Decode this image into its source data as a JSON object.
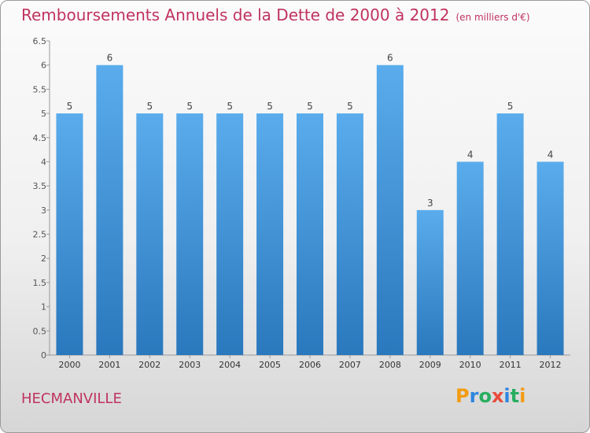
{
  "title": "Remboursements Annuels de la Dette de 2000 à 2012",
  "subtitle": "(en milliers d'€)",
  "town": "HECMANVILLE",
  "logo": {
    "letters": [
      "P",
      "r",
      "o",
      "x",
      "i",
      "t",
      "i"
    ],
    "colors": [
      "#f39c12",
      "#2e86de",
      "#27ae60",
      "#e74c3c",
      "#2e86de",
      "#27ae60",
      "#f39c12"
    ]
  },
  "chart_data": {
    "type": "bar",
    "title": "Remboursements Annuels de la Dette de 2000 à 2012",
    "categories": [
      "2000",
      "2001",
      "2002",
      "2003",
      "2004",
      "2005",
      "2006",
      "2007",
      "2008",
      "2009",
      "2010",
      "2011",
      "2012"
    ],
    "values": [
      5,
      6,
      5,
      5,
      5,
      5,
      5,
      5,
      6,
      3,
      4,
      5,
      4
    ],
    "ylim": [
      0,
      6.5
    ],
    "yticks": [
      "0",
      "0.5",
      "1",
      "1.5",
      "2",
      "2.5",
      "3",
      "3.5",
      "4",
      "4.5",
      "5",
      "5.5",
      "6",
      "6.5"
    ],
    "grid": false,
    "bar_color": "#3a8fd6"
  }
}
